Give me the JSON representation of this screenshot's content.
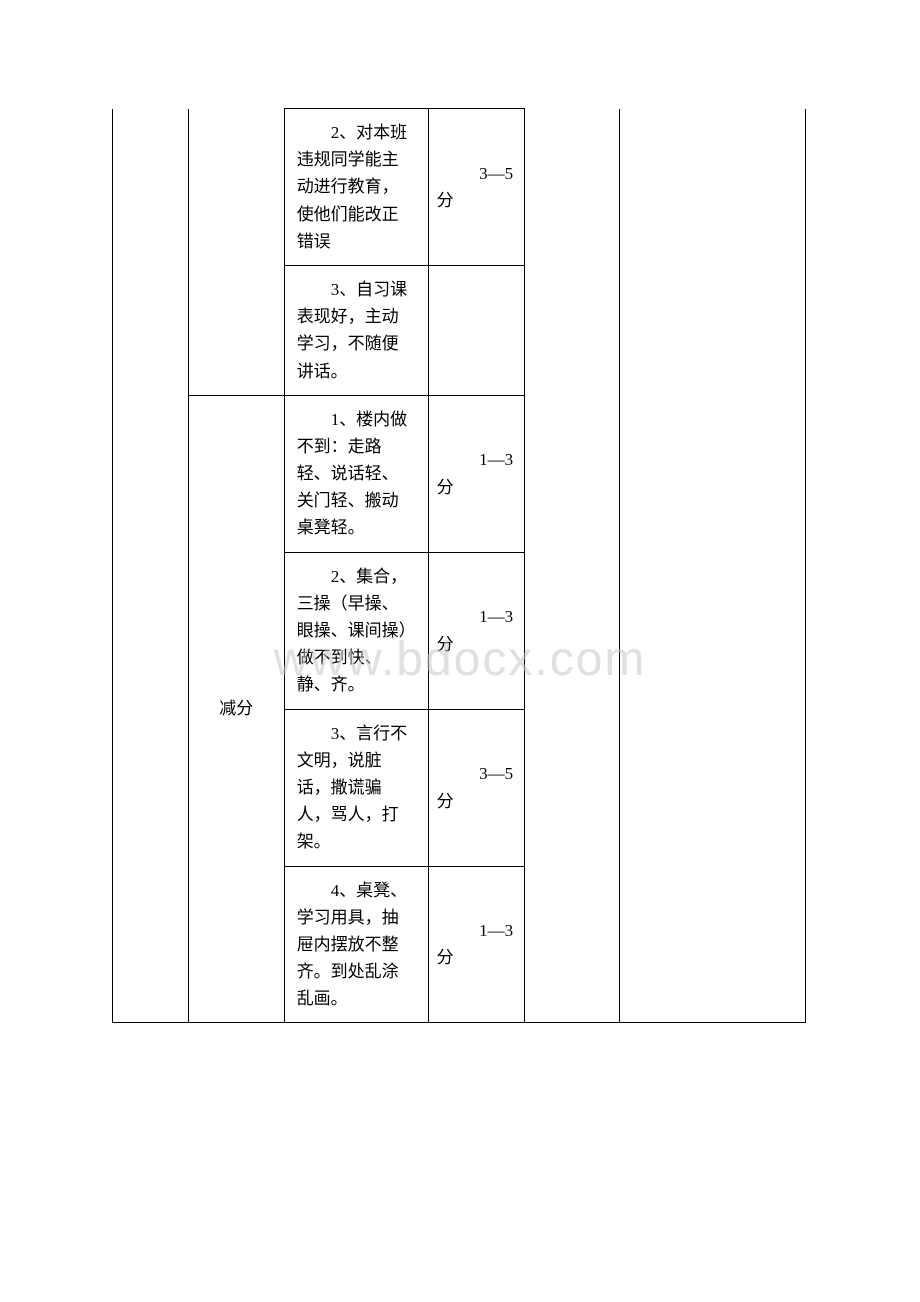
{
  "watermark": "www.bdocx.com",
  "table": {
    "col1_label": "",
    "col2_top_label": "",
    "col2_bottom_label": "减分",
    "rows": [
      {
        "desc": "2、对本班违规同学能主动进行教育，使他们能改正错误",
        "score": "3—5分"
      },
      {
        "desc": "3、自习课表现好，主动学习，不随便讲话。",
        "score": ""
      },
      {
        "desc": "1、楼内做不到：走路轻、说话轻、关门轻、搬动桌凳轻。",
        "score": "1—3分"
      },
      {
        "desc": "2、集合，三操（早操、眼操、课间操）做不到快、静、齐。",
        "score": "1—3分"
      },
      {
        "desc": "3、言行不文明，说脏话，撒谎骗人，骂人，打架。",
        "score": "3—5分"
      },
      {
        "desc": "4、桌凳、学习用具，抽屉内摆放不整齐。到处乱涂乱画。",
        "score": "1—3分"
      }
    ]
  }
}
